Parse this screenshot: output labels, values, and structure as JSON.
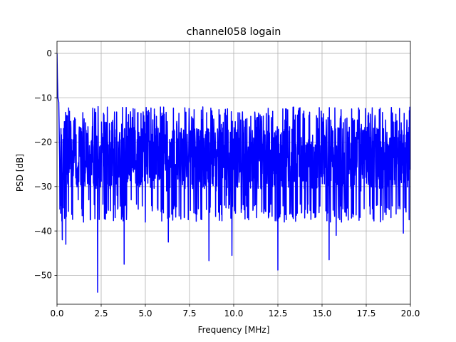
{
  "chart_data": {
    "type": "line",
    "title": "channel058 logain",
    "xlabel": "Frequency [MHz]",
    "ylabel": "PSD [dB]",
    "xlim": [
      0,
      20
    ],
    "ylim": [
      -56.5,
      2.7
    ],
    "xticks": [
      0,
      2.5,
      5,
      7.5,
      10,
      12.5,
      15,
      17.5,
      20
    ],
    "xtick_labels": [
      "0.0",
      "2.5",
      "5.0",
      "7.5",
      "10.0",
      "12.5",
      "15.0",
      "17.5",
      "20.0"
    ],
    "yticks": [
      0,
      -10,
      -20,
      -30,
      -40,
      -50
    ],
    "ytick_labels": [
      "0",
      "−10",
      "−20",
      "−30",
      "−40",
      "−50"
    ],
    "grid": true,
    "legend": "none",
    "series": [
      {
        "color": "#0000ff",
        "description": "noisy power spectral density; values oscillate between about -15 and -35 dB across the band, with a DC peak near 0 dB at 0 MHz",
        "baseline_db": -23.5,
        "upper_envelope_db": -14,
        "lower_envelope_db": -36,
        "points": [
          [
            0.0,
            0.0
          ],
          [
            0.02,
            -5
          ],
          [
            0.05,
            -10
          ],
          [
            0.1,
            -11
          ],
          [
            0.15,
            -24
          ],
          [
            0.2,
            -36
          ],
          [
            0.3,
            -42
          ],
          [
            0.5,
            -43
          ],
          [
            0.55,
            -14
          ],
          [
            0.6,
            -29
          ],
          [
            0.8,
            -30
          ],
          [
            1.0,
            -14.5
          ],
          [
            1.2,
            -33
          ],
          [
            1.4,
            -35
          ],
          [
            1.5,
            -38
          ],
          [
            1.8,
            -33
          ],
          [
            2.0,
            -16.5
          ],
          [
            2.3,
            -53.8
          ],
          [
            2.4,
            -31
          ],
          [
            2.6,
            -34
          ],
          [
            2.8,
            -36
          ],
          [
            3.1,
            -15.5
          ],
          [
            3.4,
            -32
          ],
          [
            3.6,
            -28
          ],
          [
            3.8,
            -47.5
          ],
          [
            4.0,
            -15.5
          ],
          [
            4.2,
            -33
          ],
          [
            4.5,
            -34
          ],
          [
            4.9,
            -22
          ],
          [
            5.0,
            -38
          ],
          [
            5.2,
            -15.5
          ],
          [
            5.4,
            -34
          ],
          [
            5.7,
            -28
          ],
          [
            6.0,
            -14
          ],
          [
            6.2,
            -31
          ],
          [
            6.3,
            -42.5
          ],
          [
            6.6,
            -35
          ],
          [
            6.9,
            -13.5
          ],
          [
            7.2,
            -37
          ],
          [
            7.5,
            -19
          ],
          [
            7.7,
            -15
          ],
          [
            8.0,
            -35
          ],
          [
            8.3,
            -30
          ],
          [
            8.6,
            -46.7
          ],
          [
            8.8,
            -14
          ],
          [
            9.0,
            -31
          ],
          [
            9.3,
            -16
          ],
          [
            9.6,
            -32
          ],
          [
            9.9,
            -45.5
          ],
          [
            10.1,
            -36
          ],
          [
            10.4,
            -15
          ],
          [
            10.7,
            -32
          ],
          [
            11.1,
            -35
          ],
          [
            11.3,
            -37
          ],
          [
            11.7,
            -36
          ],
          [
            12.0,
            -14
          ],
          [
            12.1,
            -34
          ],
          [
            12.3,
            -24
          ],
          [
            12.5,
            -48.8
          ],
          [
            12.6,
            -30
          ],
          [
            12.9,
            -15
          ],
          [
            13.2,
            -36
          ],
          [
            13.6,
            -36
          ],
          [
            13.8,
            -23
          ],
          [
            14.2,
            -34
          ],
          [
            14.6,
            -37
          ],
          [
            15.0,
            -14.5
          ],
          [
            15.3,
            -36
          ],
          [
            15.4,
            -46.5
          ],
          [
            15.7,
            -36
          ],
          [
            15.8,
            -41
          ],
          [
            16.1,
            -38
          ],
          [
            16.3,
            -15
          ],
          [
            16.7,
            -36
          ],
          [
            17.0,
            -15
          ],
          [
            17.2,
            -31
          ],
          [
            17.6,
            -14
          ],
          [
            17.9,
            -32
          ],
          [
            18.3,
            -34
          ],
          [
            18.6,
            -15
          ],
          [
            18.9,
            -37
          ],
          [
            19.3,
            -35
          ],
          [
            19.6,
            -40.5
          ],
          [
            19.8,
            -15
          ],
          [
            20.0,
            -22
          ]
        ]
      }
    ]
  }
}
